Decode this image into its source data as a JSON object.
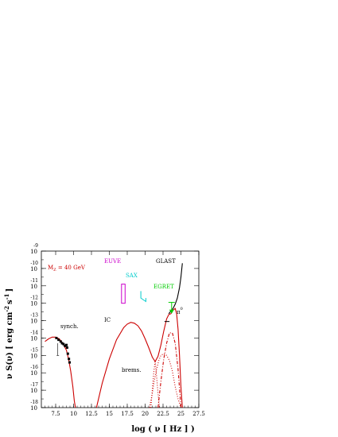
{
  "chart_data": {
    "type": "line",
    "xlabel": "log ( ν [ Hz ] )",
    "ylabel": "ν S(ν) [ erg cm",
    "ylabel_exp1": "-2",
    "ylabel_mid": "s",
    "ylabel_exp2": "-1",
    "ylabel_end": "]",
    "xlim": [
      5.5,
      27.5
    ],
    "ylim": [
      -18,
      -9
    ],
    "x_ticks": [
      7.5,
      10,
      12.5,
      15,
      17.5,
      20,
      22.5,
      25,
      27.5
    ],
    "x_tick_labels": [
      "7.5",
      "10",
      "12.5",
      "15",
      "17.5",
      "20",
      "22.5",
      "25",
      "27.5"
    ],
    "y_ticks": [
      -9,
      -10,
      -11,
      -12,
      -13,
      -14,
      -15,
      -16,
      -17,
      -18
    ],
    "y_tick_base": "10",
    "y_tick_exps": [
      "-9",
      "-10",
      "-11",
      "-12",
      "-13",
      "-14",
      "-15",
      "-16",
      "-17",
      "-18"
    ],
    "annotations": {
      "mz": "M",
      "mz_sub": "Z",
      "mz_rest": " = 40 GeV",
      "euve": "EUVE",
      "sax": "SAX",
      "egret": "EGRET",
      "glast": "GLAST",
      "ic": "IC",
      "synch": "synch.",
      "brems": "brems.",
      "pi": "π",
      "pi_sup": "0"
    },
    "series": [
      {
        "style": "solid",
        "color": "#cc0000",
        "x": [
          6.0,
          6.5,
          7.0,
          7.5,
          8.0,
          8.5,
          9.0,
          9.3,
          9.6,
          9.9,
          10.1,
          10.25
        ],
        "y": [
          -14.2,
          -14.05,
          -13.95,
          -13.95,
          -14.05,
          -14.3,
          -14.7,
          -15.2,
          -15.9,
          -16.8,
          -17.6,
          -18.0
        ]
      },
      {
        "style": "solid",
        "color": "#cc0000",
        "x": [
          13.2,
          14.0,
          15.0,
          16.0,
          17.0,
          17.5,
          18.0,
          18.5,
          19.0,
          19.5,
          20.0,
          20.5,
          21.0,
          21.4,
          21.8,
          22.2,
          22.6,
          23.0,
          23.3,
          23.6,
          23.9,
          24.2,
          24.4,
          24.6,
          24.8,
          25.0,
          25.2
        ],
        "y": [
          -18.0,
          -16.6,
          -15.2,
          -14.1,
          -13.4,
          -13.2,
          -13.1,
          -13.15,
          -13.3,
          -13.6,
          -14.05,
          -14.55,
          -15.1,
          -15.35,
          -15.05,
          -14.4,
          -13.6,
          -12.9,
          -12.65,
          -12.6,
          -12.4,
          -12.3,
          -12.6,
          -13.5,
          -15.0,
          -16.8,
          -18.0
        ]
      },
      {
        "style": "dotted",
        "color": "#cc0000",
        "x": [
          20.6,
          21.0,
          21.3,
          21.6,
          21.9,
          22.2,
          22.6,
          23.0,
          23.4,
          23.8,
          24.2,
          24.6,
          25.0
        ],
        "y": [
          -18.0,
          -17.2,
          -16.4,
          -15.8,
          -15.3,
          -15.0,
          -14.9,
          -15.0,
          -15.3,
          -15.9,
          -16.8,
          -17.5,
          -18.0
        ]
      },
      {
        "style": "dotted",
        "color": "#cc0000",
        "x": [
          20.8,
          21.0,
          21.2,
          21.4,
          21.6,
          21.8,
          22.0
        ],
        "y": [
          -18.0,
          -17.0,
          -16.0,
          -15.3,
          -16.2,
          -17.2,
          -18.0
        ]
      },
      {
        "style": "dashdot",
        "color": "#cc0000",
        "x": [
          21.8,
          22.2,
          22.6,
          23.0,
          23.4,
          23.8,
          24.2,
          24.6,
          25.0
        ],
        "y": [
          -18.0,
          -16.5,
          -15.2,
          -14.3,
          -13.7,
          -13.7,
          -14.3,
          -15.8,
          -18.0
        ]
      },
      {
        "style": "solid",
        "color": "#000000",
        "x": [
          23.3,
          23.6,
          23.9,
          24.2,
          24.5,
          24.8,
          25.0,
          25.2
        ],
        "y": [
          -12.6,
          -12.45,
          -12.3,
          -12.05,
          -11.7,
          -11.1,
          -10.5,
          -9.7
        ]
      }
    ],
    "data_points": {
      "color": "#000000",
      "x": [
        7.6,
        7.9,
        8.2,
        8.4,
        8.6,
        8.8,
        9.0,
        9.1,
        9.2,
        9.35,
        9.45
      ],
      "y": [
        -14.0,
        -14.1,
        -14.2,
        -14.3,
        -14.35,
        -14.45,
        -14.4,
        -14.55,
        -14.9,
        -15.2,
        -15.4
      ],
      "upper_limits": [
        {
          "x": 7.8,
          "y": -14.3,
          "y_low": -15.0
        }
      ]
    },
    "euve_box": {
      "x": [
        16.7,
        17.2
      ],
      "y": [
        -10.9,
        -12.0
      ],
      "color": "#cc00cc"
    },
    "sax_box": {
      "x": [
        19.4,
        20.1
      ],
      "y": [
        -11.3,
        -11.7
      ],
      "color": "#00cccc"
    },
    "egret": {
      "x": 23.7,
      "y_top": -11.95,
      "y_bottom": -12.6,
      "color": "#00cc00"
    },
    "glast_bar": {
      "x": [
        22.7,
        23.4
      ],
      "y": -13.05
    },
    "colors": {
      "model": "#cc0000",
      "euve": "#cc00cc",
      "sax": "#00cccc",
      "egret": "#00cc00",
      "glast": "#000000"
    }
  }
}
